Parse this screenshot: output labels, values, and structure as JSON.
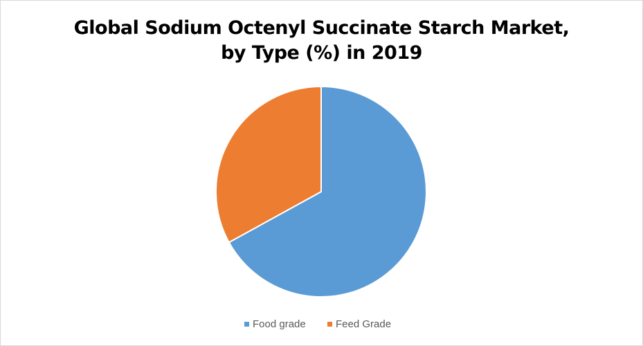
{
  "chart_data": {
    "type": "pie",
    "title": "Global Sodium Octenyl Succinate Starch Market, by Type (%) in 2019",
    "categories": [
      "Food grade",
      "Feed Grade"
    ],
    "values": [
      67,
      33
    ],
    "colors": [
      "#5b9bd5",
      "#ed7d31"
    ],
    "legend": "bottom"
  }
}
